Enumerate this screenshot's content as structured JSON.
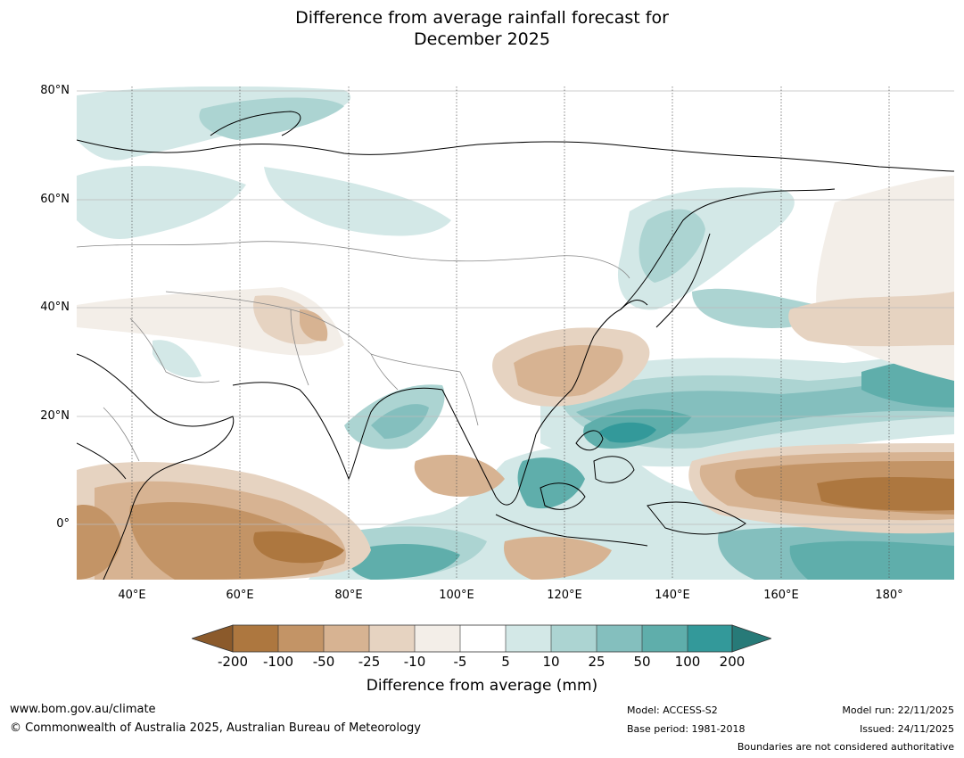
{
  "title_line1": "Difference from average rainfall forecast for",
  "title_line2": "December 2025",
  "map": {
    "lat_labels": [
      "80°N",
      "60°N",
      "40°N",
      "20°N",
      "0°"
    ],
    "lon_labels": [
      "40°E",
      "60°E",
      "80°E",
      "100°E",
      "120°E",
      "140°E",
      "160°E",
      "180°"
    ],
    "colors": {
      "dry_extreme": "#8b5a2b",
      "dry_200": "#ad773f",
      "dry_100": "#c39466",
      "dry_50": "#d7b392",
      "dry_25": "#e6d3c1",
      "dry_10": "#f3eee8",
      "neutral": "#ffffff",
      "wet_5": "#d3e8e7",
      "wet_10": "#acd4d2",
      "wet_25": "#84bfbe",
      "wet_50": "#5faeab",
      "wet_100": "#33999a",
      "wet_extreme": "#277a78"
    }
  },
  "colorbar": {
    "ticks": [
      "-200",
      "-100",
      "-50",
      "-25",
      "-10",
      "-5",
      "5",
      "10",
      "25",
      "50",
      "100",
      "200"
    ],
    "label": "Difference from average (mm)"
  },
  "footer": {
    "website": "www.bom.gov.au/climate",
    "copyright": "© Commonwealth of Australia 2025, Australian Bureau of Meteorology",
    "model": "Model: ACCESS-S2",
    "base_period": "Base period: 1981-2018",
    "model_run": "Model run: 22/11/2025",
    "issued": "Issued: 24/11/2025",
    "disclaimer": "Boundaries are not considered authoritative"
  }
}
